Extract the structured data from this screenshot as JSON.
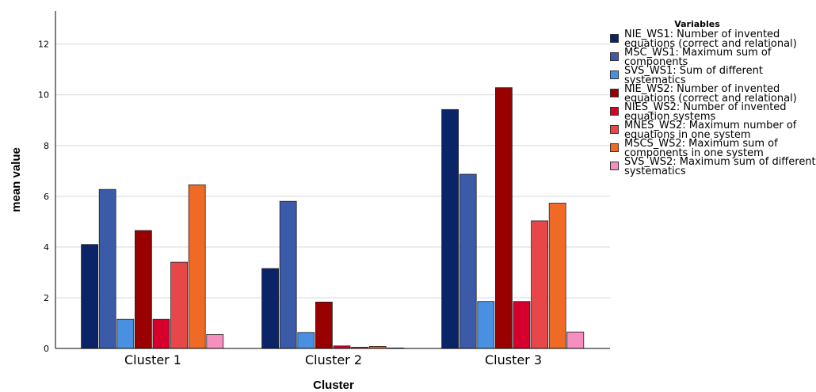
{
  "chart_data": {
    "type": "bar",
    "ylabel": "mean value",
    "xlabel": "Cluster",
    "ylim": [
      0,
      13.3
    ],
    "yticks": [
      "0",
      "2",
      "4",
      "6",
      "8",
      "10",
      "12"
    ],
    "categories": [
      "Cluster 1",
      "Cluster 2",
      "Cluster 3"
    ],
    "legend_title": "Variables",
    "legend_position": "right",
    "grid": "horizontal",
    "series": [
      {
        "name": "NIE_WS1: Number of invented equations (correct and relational)",
        "color": "#0b2468",
        "values": [
          4.1,
          3.15,
          9.42
        ]
      },
      {
        "name": "MSC_WS1: Maximum sum of components",
        "color": "#3b5aa8",
        "values": [
          6.27,
          5.8,
          6.87
        ]
      },
      {
        "name": "SVS_WS1: Sum of different systematics",
        "color": "#4a90e2",
        "values": [
          1.15,
          0.63,
          1.85
        ]
      },
      {
        "name": "NIE_WS2: Number of invented equations (correct and relational)",
        "color": "#990000",
        "values": [
          4.65,
          1.83,
          10.28
        ]
      },
      {
        "name": "NIES_WS2: Number of invented equation systems",
        "color": "#d6002d",
        "values": [
          1.15,
          0.1,
          1.85
        ]
      },
      {
        "name": "MNES_WS2: Maximum number of equations in one system",
        "color": "#e8474a",
        "values": [
          3.4,
          0.05,
          5.03
        ]
      },
      {
        "name": "MSCS_WS2: Maximum sum of components in one system",
        "color": "#ef6a24",
        "values": [
          6.45,
          0.08,
          5.73
        ]
      },
      {
        "name": "SVS_WS2: Maximum sum of different systematics",
        "color": "#f58fbf",
        "values": [
          0.55,
          0.02,
          0.65
        ]
      }
    ]
  }
}
